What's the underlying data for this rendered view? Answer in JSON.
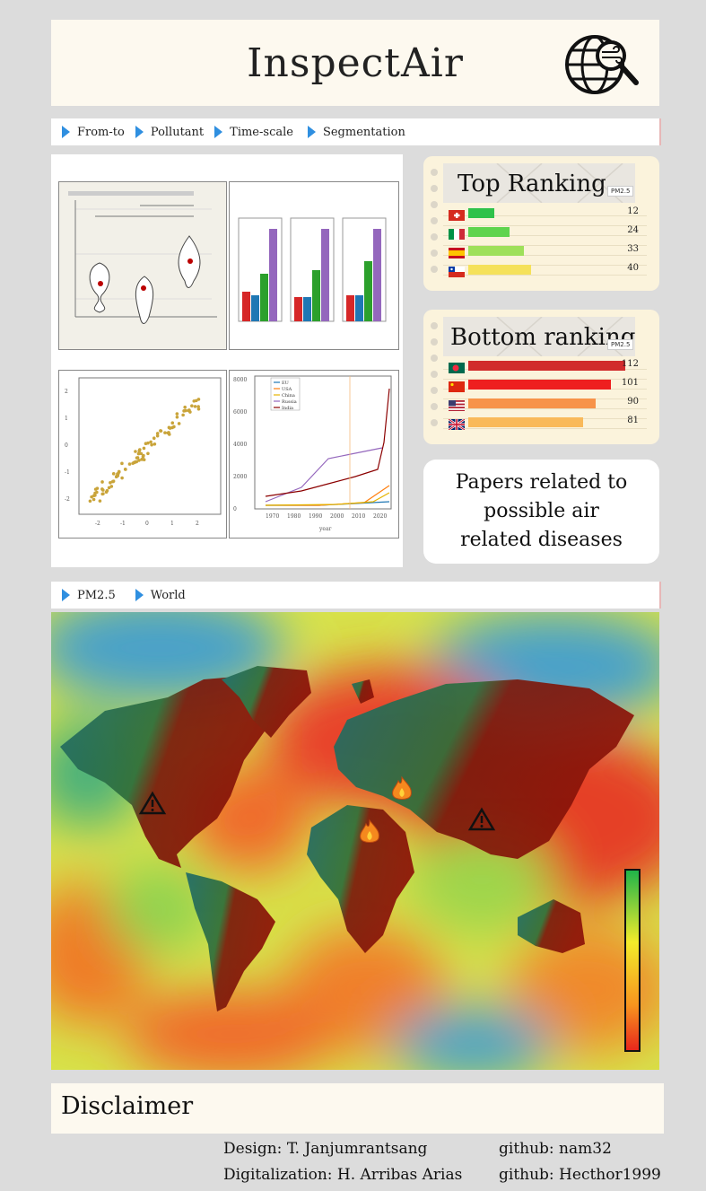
{
  "app": {
    "title": "InspectAir",
    "logo_icon": "globe-wind-search-icon"
  },
  "filter_bar_top": {
    "items": [
      "From-to",
      "Pollutant",
      "Time-scale",
      "Segmentation"
    ]
  },
  "filter_bar_map": {
    "items": [
      "PM2.5",
      "World"
    ]
  },
  "plots": {
    "line_chart": {
      "y_ticks": [
        "8000",
        "6000",
        "4000",
        "2000",
        "0"
      ],
      "x_ticks": [
        "1970",
        "1980",
        "1990",
        "2000",
        "2010",
        "2020"
      ],
      "legend": [
        "EU",
        "USA",
        "China",
        "Russia",
        "India"
      ],
      "xlabel": "year"
    },
    "scatter": {
      "x_ticks": [
        "-2",
        "-1",
        "0",
        "1",
        "2"
      ],
      "y_ticks": [
        "-2",
        "-1",
        "0",
        "1",
        "2"
      ]
    }
  },
  "top_ranking": {
    "title": "Top Ranking",
    "pollutant": "PM2.5",
    "rows": [
      {
        "flag": "switzerland",
        "value": "12",
        "fraction": 0.18,
        "color": "#2fc24a"
      },
      {
        "flag": "italy",
        "value": "24",
        "fraction": 0.29,
        "color": "#5fd44e"
      },
      {
        "flag": "spain",
        "value": "33",
        "fraction": 0.39,
        "color": "#9ee05a"
      },
      {
        "flag": "chile",
        "value": "40",
        "fraction": 0.44,
        "color": "#f5e15a"
      }
    ]
  },
  "bottom_ranking": {
    "title": "Bottom ranking",
    "pollutant": "PM2.5",
    "rows": [
      {
        "flag": "bangladesh",
        "value": "112",
        "fraction": 1.0,
        "color": "#d12b2b"
      },
      {
        "flag": "china",
        "value": "101",
        "fraction": 0.91,
        "color": "#ee1f1f"
      },
      {
        "flag": "usa",
        "value": "90",
        "fraction": 0.81,
        "color": "#f7934a"
      },
      {
        "flag": "uk",
        "value": "81",
        "fraction": 0.73,
        "color": "#f9b95a"
      }
    ]
  },
  "papers": {
    "lines": [
      "Papers related to",
      "possible air",
      "related diseases"
    ]
  },
  "disclaimer": {
    "title": "Disclaimer"
  },
  "credits": {
    "design": "Design: T. Janjumrantsang",
    "design_github": "github: nam32",
    "digitalization": "Digitalization: H. Arribas Arias",
    "digitalization_github": "github: Hecthor1999"
  }
}
